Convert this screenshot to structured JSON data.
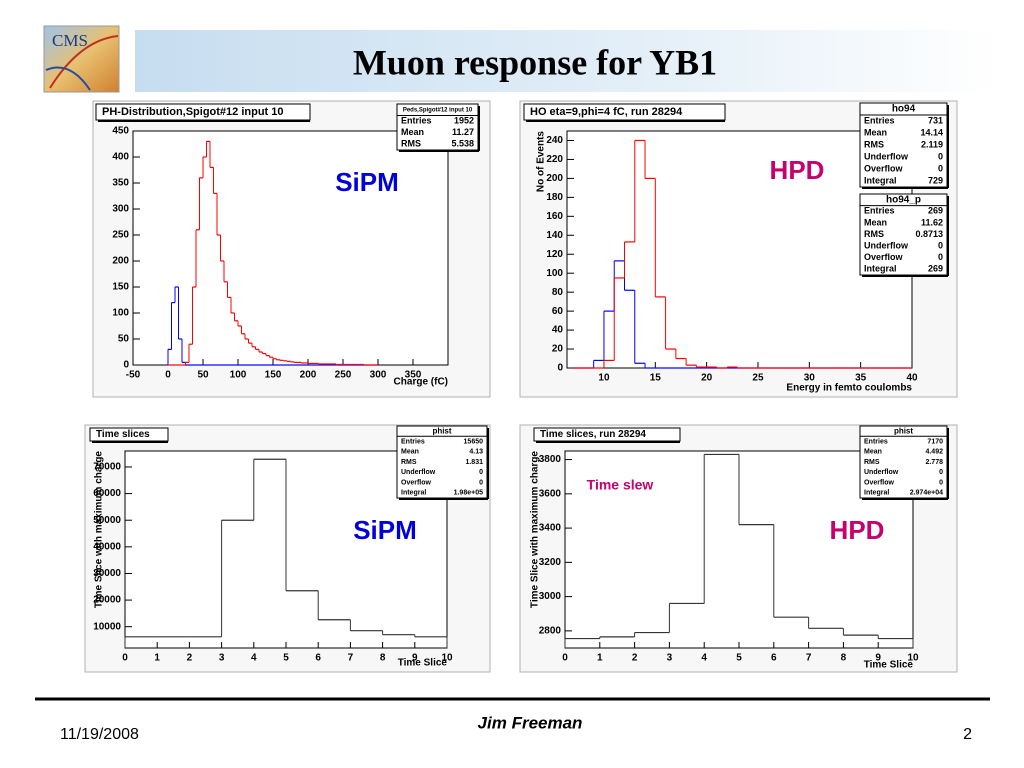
{
  "logo": {
    "text": "CMS"
  },
  "title": "Muon response for YB1",
  "footer": {
    "date": "11/19/2008",
    "author": "Jim Freeman",
    "page": "2"
  },
  "chart_data": [
    {
      "type": "histogram",
      "title": "PH-Distribution,Spigot#12 input 10",
      "x_label": "Charge (fC)",
      "annotations": [
        "SiPM"
      ],
      "stats": [
        {
          "title": "Peds,Spigot#12 input 10",
          "rows": [
            [
              "Entries",
              "1952"
            ],
            [
              "Mean",
              "11.27"
            ],
            [
              "RMS",
              "5.538"
            ]
          ]
        }
      ],
      "xlim": [
        -50,
        400
      ],
      "xticks": [
        -50,
        0,
        50,
        100,
        150,
        200,
        250,
        300,
        350
      ],
      "ylim": [
        0,
        450
      ],
      "yticks": [
        0,
        50,
        100,
        150,
        200,
        250,
        300,
        350,
        400,
        450
      ],
      "bins": [
        0,
        5,
        10,
        15,
        20,
        25,
        30,
        35,
        40,
        45,
        50,
        55,
        60,
        65,
        70,
        75,
        80,
        85,
        90,
        95,
        100,
        105,
        110,
        115,
        120,
        125,
        130,
        135,
        140,
        145,
        150,
        155,
        160,
        165,
        170,
        175,
        180,
        185,
        190,
        195,
        200,
        205,
        210,
        215,
        220,
        225,
        230,
        235,
        240,
        245,
        250,
        255,
        260,
        265,
        270,
        275,
        280,
        285,
        290,
        295,
        300
      ],
      "series": [
        {
          "color": "#0000ff",
          "values": [
            30,
            120,
            150,
            50,
            5,
            0,
            0,
            0,
            0,
            0,
            0,
            0,
            0,
            0,
            0,
            0,
            0,
            0,
            0,
            0,
            0,
            0,
            0,
            0,
            0,
            0,
            0,
            0,
            0,
            0,
            0,
            0,
            0,
            0,
            0,
            0,
            0,
            0,
            0,
            0,
            0,
            0,
            0,
            0,
            0,
            0,
            0,
            0,
            0,
            0,
            0,
            0,
            0,
            0,
            0,
            0,
            0,
            0,
            0,
            0
          ]
        },
        {
          "color": "#ff0000",
          "values": [
            0,
            0,
            0,
            0,
            0,
            5,
            40,
            150,
            260,
            360,
            400,
            430,
            380,
            330,
            250,
            200,
            160,
            130,
            100,
            85,
            75,
            60,
            50,
            42,
            35,
            30,
            25,
            22,
            18,
            15,
            12,
            10,
            9,
            8,
            7,
            6,
            5,
            5,
            4,
            4,
            3,
            3,
            3,
            2,
            2,
            2,
            2,
            2,
            1,
            1,
            1,
            1,
            1,
            1,
            1,
            1,
            0,
            0,
            0,
            0
          ]
        }
      ]
    },
    {
      "type": "histogram",
      "title": "HO eta=9,phi=4 fC, run 28294",
      "x_label": "Energy in femto coulombs",
      "y_label": "No of Events",
      "annotations": [
        "HPD"
      ],
      "stats": [
        {
          "title": "ho94",
          "rows": [
            [
              "Entries",
              "731"
            ],
            [
              "Mean",
              "14.14"
            ],
            [
              "RMS",
              "2.119"
            ],
            [
              "Underflow",
              "0"
            ],
            [
              "Overflow",
              "0"
            ],
            [
              "Integral",
              "729"
            ]
          ]
        },
        {
          "title": "ho94_p",
          "rows": [
            [
              "Entries",
              "269"
            ],
            [
              "Mean",
              "11.62"
            ],
            [
              "RMS",
              "0.8713"
            ],
            [
              "Underflow",
              "0"
            ],
            [
              "Overflow",
              "0"
            ],
            [
              "Integral",
              "269"
            ]
          ]
        }
      ],
      "xlim": [
        6.4,
        40
      ],
      "xticks": [
        10,
        15,
        20,
        25,
        30,
        35,
        40
      ],
      "ylim": [
        0,
        250
      ],
      "yticks": [
        0,
        20,
        40,
        60,
        80,
        100,
        120,
        140,
        160,
        180,
        200,
        220,
        240
      ],
      "bins": [
        7,
        8,
        9,
        10,
        11,
        12,
        13,
        14,
        15,
        16,
        17,
        18,
        19,
        20,
        21,
        22,
        23,
        24,
        25,
        26,
        27,
        28,
        29,
        30,
        31,
        32,
        33,
        34,
        35,
        36,
        37,
        38,
        39,
        40
      ],
      "series": [
        {
          "color": "#0000ff",
          "values": [
            0,
            0,
            8,
            60,
            113,
            82,
            5,
            0,
            0,
            0,
            0,
            0,
            0,
            0,
            0,
            0,
            0,
            0,
            0,
            0,
            0,
            0,
            0,
            0,
            0,
            0,
            0,
            0,
            0,
            0,
            0,
            0,
            0
          ]
        },
        {
          "color": "#ff0000",
          "values": [
            0,
            0,
            0,
            8,
            95,
            133,
            240,
            200,
            75,
            20,
            10,
            3,
            1,
            1,
            0,
            1,
            0,
            0,
            0,
            0,
            0,
            0,
            0,
            0,
            0,
            0,
            0,
            0,
            0,
            0,
            0,
            0,
            0
          ]
        }
      ]
    },
    {
      "type": "histogram",
      "title": "Time slices",
      "x_label": "Time Slice",
      "y_label": "Time Slice with maximum charge",
      "annotations": [
        "SiPM"
      ],
      "stats": [
        {
          "title": "phist",
          "rows": [
            [
              "Entries",
              "15650"
            ],
            [
              "Mean",
              "4.13"
            ],
            [
              "RMS",
              "1.831"
            ],
            [
              "Underflow",
              "0"
            ],
            [
              "Overflow",
              "0"
            ],
            [
              "Integral",
              "1.98e+05"
            ]
          ]
        }
      ],
      "xlim": [
        0,
        10
      ],
      "xticks": [
        0,
        1,
        2,
        3,
        4,
        5,
        6,
        7,
        8,
        9,
        10
      ],
      "ylim": [
        2000,
        76000
      ],
      "yticks": [
        10000,
        20000,
        30000,
        40000,
        50000,
        60000,
        70000
      ],
      "bins": [
        0,
        1,
        2,
        3,
        4,
        5,
        6,
        7,
        8,
        9,
        10
      ],
      "series": [
        {
          "color": "#333333",
          "values": [
            6200,
            6200,
            6200,
            50000,
            72900,
            23500,
            12600,
            8500,
            7000,
            6200
          ]
        }
      ]
    },
    {
      "type": "histogram",
      "title": "Time slices, run 28294",
      "x_label": "Time Slice",
      "y_label": "Time Slice with maximum charge",
      "annotations": [
        "HPD",
        "Time slew"
      ],
      "stats": [
        {
          "title": "phist",
          "rows": [
            [
              "Entries",
              "7170"
            ],
            [
              "Mean",
              "4.492"
            ],
            [
              "RMS",
              "2.778"
            ],
            [
              "Underflow",
              "0"
            ],
            [
              "Overflow",
              "0"
            ],
            [
              "Integral",
              "2.974e+04"
            ]
          ]
        }
      ],
      "xlim": [
        0,
        10
      ],
      "xticks": [
        0,
        1,
        2,
        3,
        4,
        5,
        6,
        7,
        8,
        9,
        10
      ],
      "ylim": [
        2700,
        3850
      ],
      "yticks": [
        2800,
        3000,
        3200,
        3400,
        3600,
        3800
      ],
      "bins": [
        0,
        1,
        2,
        3,
        4,
        5,
        6,
        7,
        8,
        9,
        10
      ],
      "series": [
        {
          "color": "#333333",
          "values": [
            2755,
            2765,
            2790,
            2960,
            3830,
            3420,
            2880,
            2815,
            2775,
            2755
          ]
        }
      ]
    }
  ]
}
